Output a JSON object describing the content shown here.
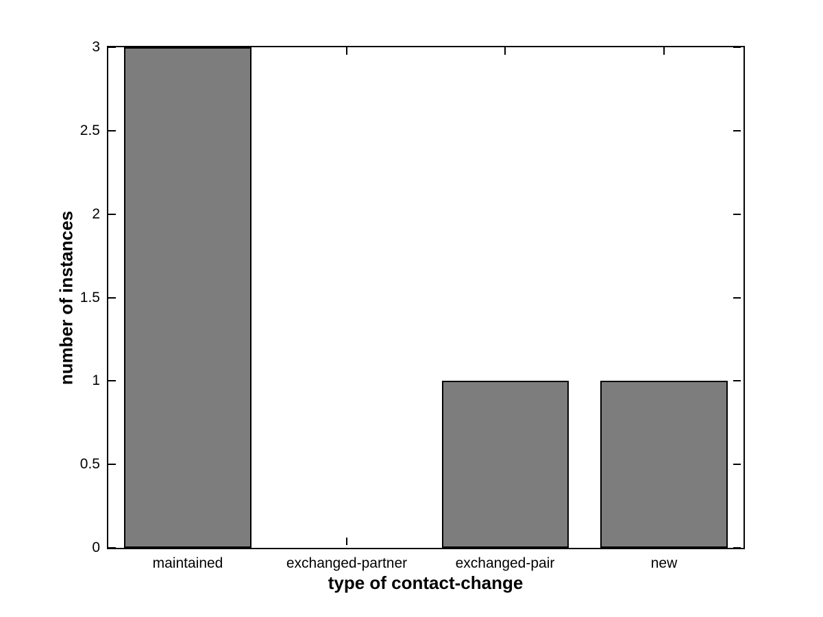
{
  "chart_data": {
    "type": "bar",
    "title": "",
    "xlabel": "type of contact-change",
    "ylabel": "number of instances",
    "categories": [
      "maintained",
      "exchanged-partner",
      "exchanged-pair",
      "new"
    ],
    "values": [
      3,
      0,
      1,
      1
    ],
    "ylim": [
      0,
      3
    ],
    "yticks": [
      0,
      0.5,
      1,
      1.5,
      2,
      2.5,
      3
    ],
    "ytick_labels": [
      "0",
      "0.5",
      "1",
      "1.5",
      "2",
      "2.5",
      "3"
    ],
    "bar_width_fraction": 0.8,
    "bar_fill_color": "#7d7d7d",
    "bar_edge_color": "#000000",
    "axis_color": "#000000",
    "background_color": "#ffffff",
    "grid": false,
    "legend": "none",
    "box": true
  }
}
